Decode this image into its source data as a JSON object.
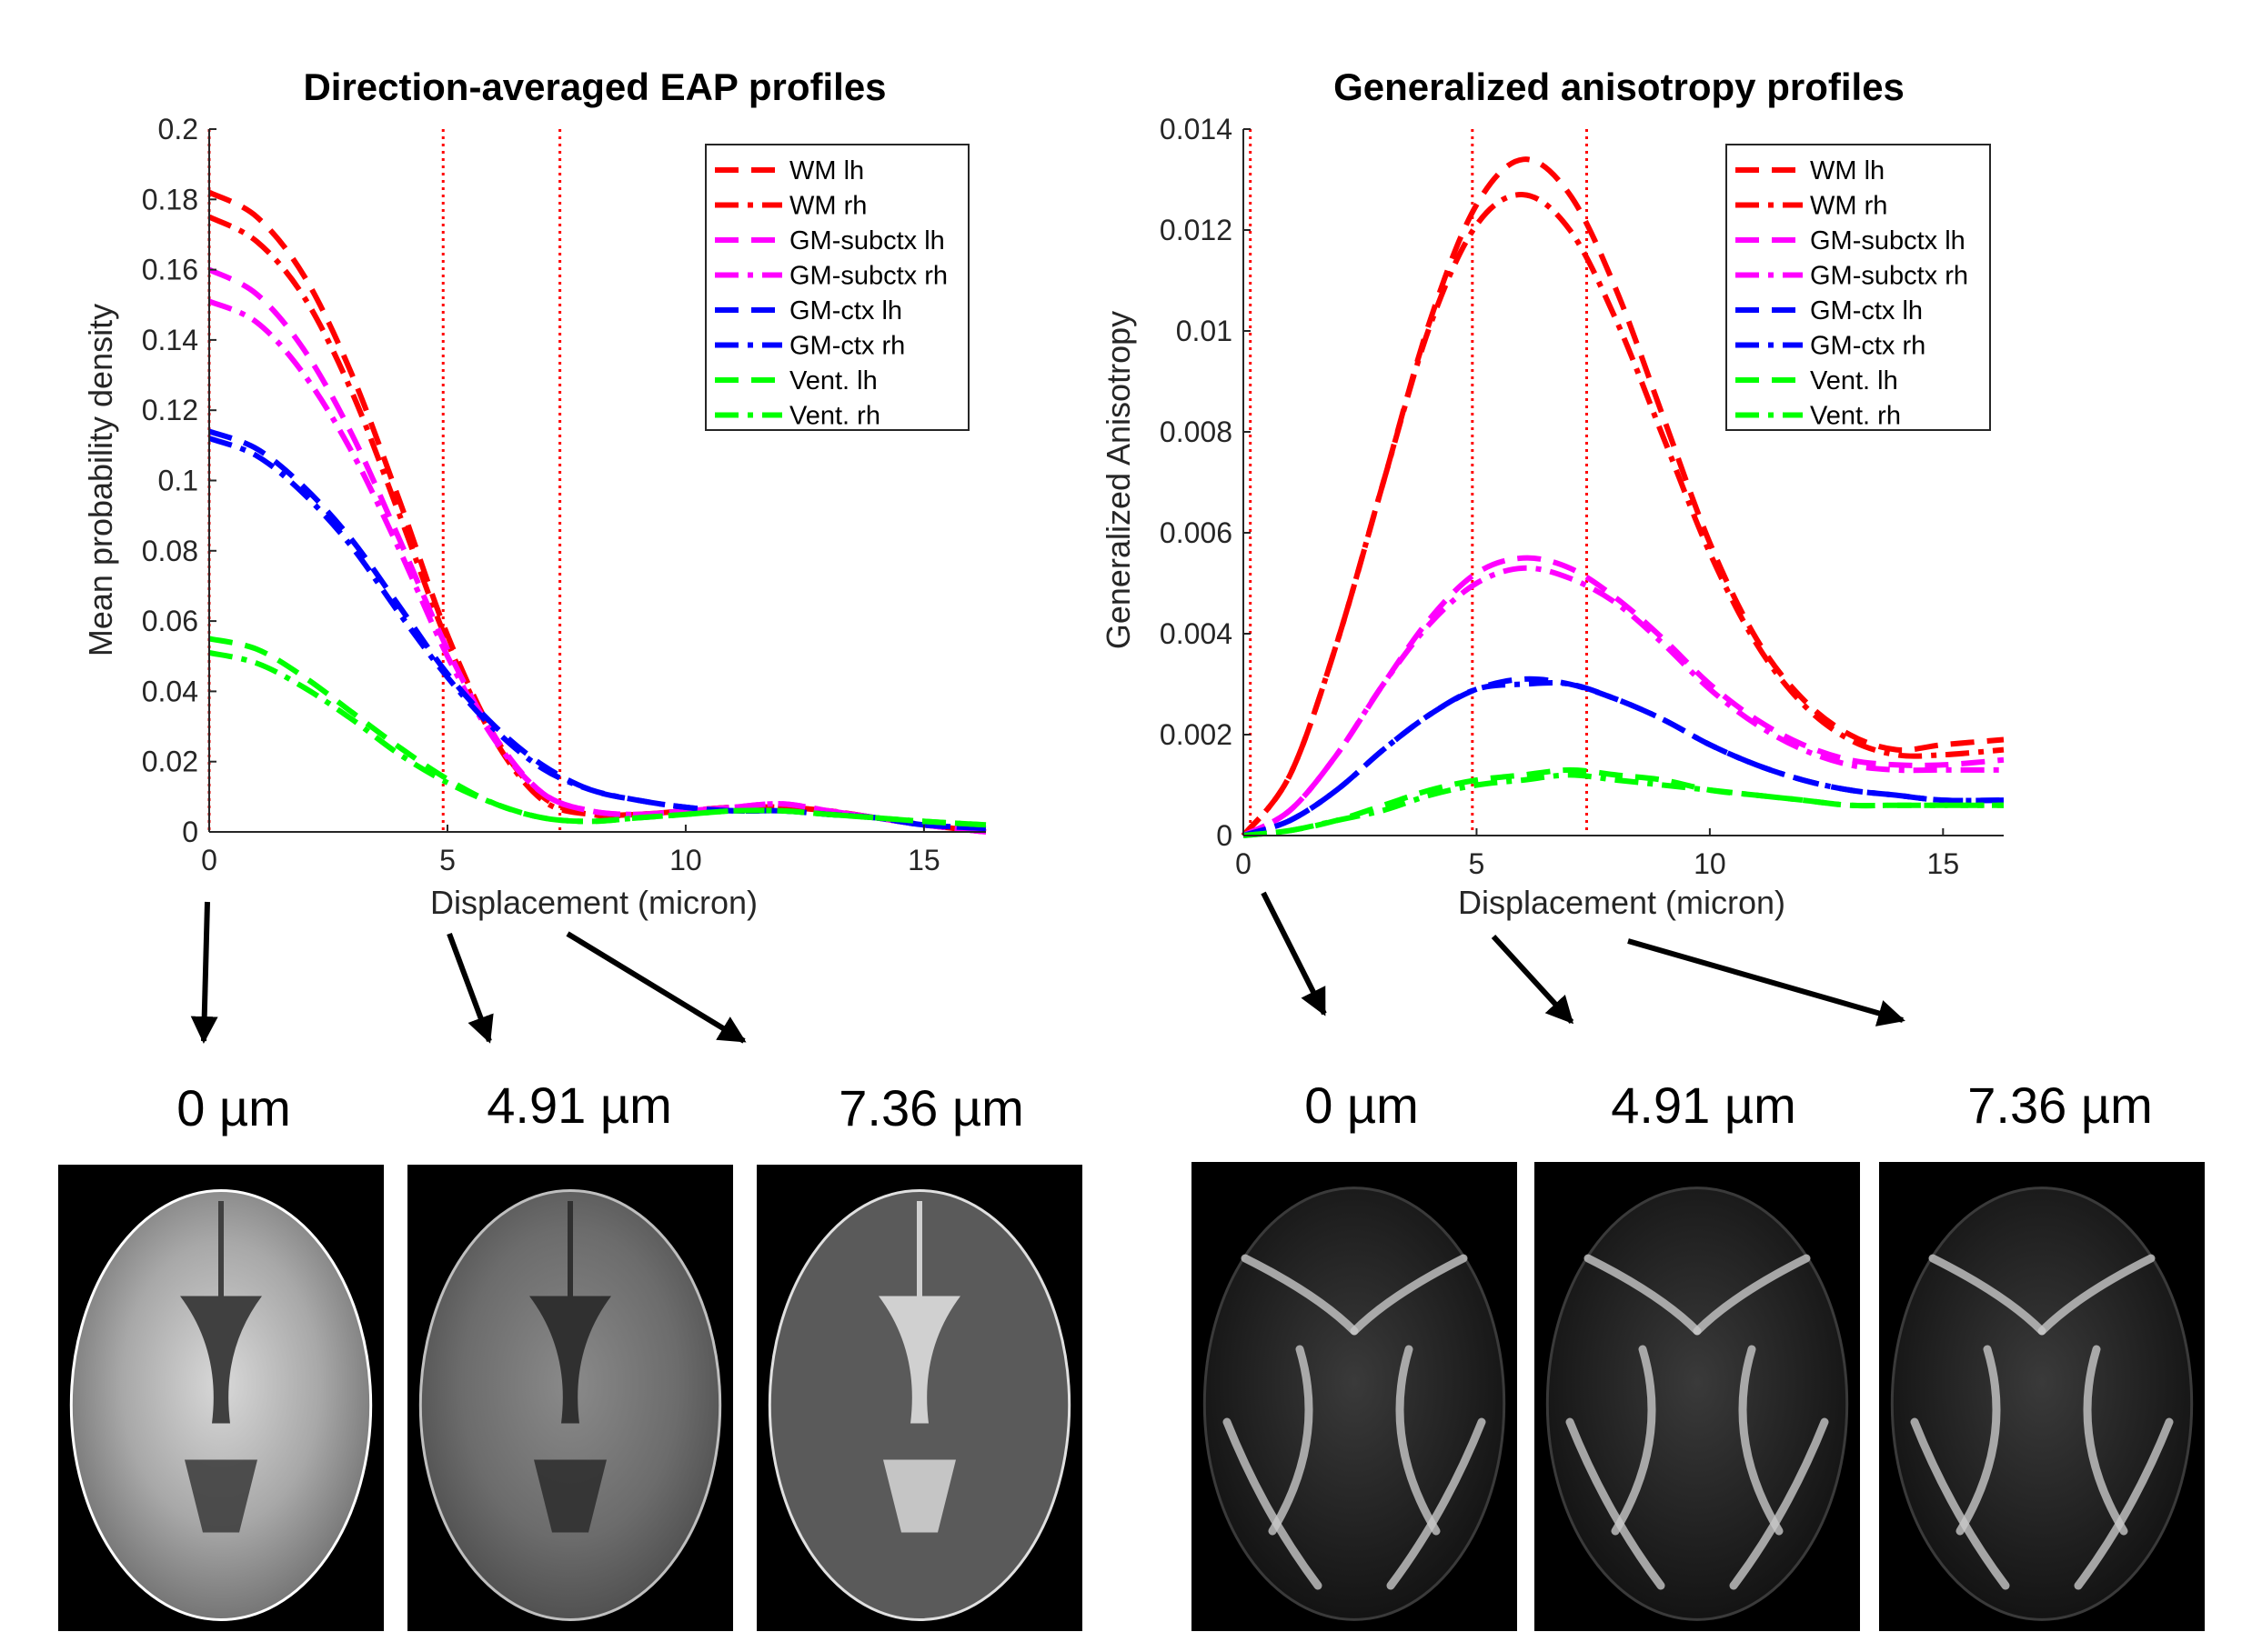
{
  "colors": {
    "wm": "#ff0000",
    "gm_subctx": "#ff00ff",
    "gm_ctx": "#0000ff",
    "vent": "#00ff00",
    "marker": "#ff0000"
  },
  "chart_data": [
    {
      "type": "line",
      "title": "Direction-averaged EAP profiles",
      "xlabel": "Displacement (micron)",
      "ylabel": "Mean probability density",
      "xlim": [
        0,
        16.3
      ],
      "ylim": [
        0,
        0.2
      ],
      "xticks": [
        "0",
        "5",
        "10",
        "15"
      ],
      "yticks": [
        "0",
        "0.02",
        "0.04",
        "0.06",
        "0.08",
        "0.1",
        "0.12",
        "0.14",
        "0.16",
        "0.18",
        "0.2"
      ],
      "legend_position": "top-right",
      "marker_lines": [
        0,
        4.91,
        7.36
      ],
      "x": [
        0,
        1,
        2,
        3,
        4,
        5,
        6,
        7,
        8,
        9,
        10,
        11,
        12,
        13,
        14,
        15,
        16.3
      ],
      "series": [
        {
          "name": "WM lh",
          "color": "wm",
          "dash": "dash",
          "values": [
            0.182,
            0.175,
            0.158,
            0.13,
            0.094,
            0.056,
            0.027,
            0.01,
            0.005,
            0.005,
            0.006,
            0.007,
            0.007,
            0.006,
            0.004,
            0.002,
            0.0
          ]
        },
        {
          "name": "WM rh",
          "color": "wm",
          "dash": "dashdot",
          "values": [
            0.175,
            0.168,
            0.152,
            0.125,
            0.09,
            0.054,
            0.026,
            0.009,
            0.005,
            0.005,
            0.006,
            0.007,
            0.007,
            0.006,
            0.004,
            0.002,
            0.0
          ]
        },
        {
          "name": "GM-subctx lh",
          "color": "gm_subctx",
          "dash": "dash",
          "values": [
            0.16,
            0.153,
            0.137,
            0.113,
            0.083,
            0.052,
            0.027,
            0.011,
            0.006,
            0.005,
            0.006,
            0.007,
            0.008,
            0.006,
            0.004,
            0.002,
            0.0
          ]
        },
        {
          "name": "GM-subctx rh",
          "color": "gm_subctx",
          "dash": "dashdot",
          "values": [
            0.151,
            0.145,
            0.13,
            0.108,
            0.08,
            0.05,
            0.026,
            0.011,
            0.006,
            0.005,
            0.006,
            0.007,
            0.008,
            0.006,
            0.004,
            0.002,
            0.0
          ]
        },
        {
          "name": "GM-ctx lh",
          "color": "gm_ctx",
          "dash": "dash",
          "values": [
            0.114,
            0.109,
            0.098,
            0.083,
            0.064,
            0.045,
            0.03,
            0.019,
            0.012,
            0.009,
            0.007,
            0.006,
            0.006,
            0.005,
            0.004,
            0.002,
            0.001
          ]
        },
        {
          "name": "GM-ctx rh",
          "color": "gm_ctx",
          "dash": "dashdot",
          "values": [
            0.112,
            0.107,
            0.096,
            0.081,
            0.062,
            0.044,
            0.029,
            0.018,
            0.012,
            0.009,
            0.007,
            0.006,
            0.006,
            0.005,
            0.004,
            0.002,
            0.001
          ]
        },
        {
          "name": "Vent. lh",
          "color": "vent",
          "dash": "dash",
          "values": [
            0.055,
            0.052,
            0.044,
            0.034,
            0.024,
            0.015,
            0.008,
            0.004,
            0.003,
            0.004,
            0.005,
            0.006,
            0.006,
            0.005,
            0.004,
            0.003,
            0.002
          ]
        },
        {
          "name": "Vent. rh",
          "color": "vent",
          "dash": "dashdot",
          "values": [
            0.051,
            0.048,
            0.041,
            0.032,
            0.022,
            0.014,
            0.008,
            0.004,
            0.003,
            0.004,
            0.005,
            0.006,
            0.006,
            0.005,
            0.004,
            0.003,
            0.002
          ]
        }
      ]
    },
    {
      "type": "line",
      "title": "Generalized anisotropy profiles",
      "xlabel": "Displacement (micron)",
      "ylabel": "Generalized Anisotropy",
      "xlim": [
        0,
        16.3
      ],
      "ylim": [
        0,
        0.014
      ],
      "xticks": [
        "0",
        "5",
        "10",
        "15"
      ],
      "yticks": [
        "0",
        "0.002",
        "0.004",
        "0.006",
        "0.008",
        "0.01",
        "0.012",
        "0.014"
      ],
      "legend_position": "top-right",
      "marker_lines": [
        0.15,
        4.91,
        7.36
      ],
      "x": [
        0,
        1,
        2,
        3,
        4,
        5,
        6,
        7,
        8,
        9,
        10,
        11,
        12,
        13,
        14,
        15,
        16.3
      ],
      "series": [
        {
          "name": "WM lh",
          "color": "wm",
          "dash": "dash",
          "values": [
            0.0,
            0.0012,
            0.0038,
            0.007,
            0.0102,
            0.0125,
            0.0134,
            0.0127,
            0.0108,
            0.0083,
            0.0058,
            0.0039,
            0.0027,
            0.002,
            0.0017,
            0.0018,
            0.0019
          ]
        },
        {
          "name": "WM rh",
          "color": "wm",
          "dash": "dashdot",
          "values": [
            0.0,
            0.0012,
            0.0038,
            0.007,
            0.0101,
            0.0121,
            0.0127,
            0.012,
            0.0102,
            0.0079,
            0.0056,
            0.0038,
            0.0026,
            0.0019,
            0.0016,
            0.0016,
            0.0017
          ]
        },
        {
          "name": "GM-subctx lh",
          "color": "gm_subctx",
          "dash": "dash",
          "values": [
            0.0,
            0.0005,
            0.0016,
            0.003,
            0.0043,
            0.0052,
            0.0055,
            0.0053,
            0.0047,
            0.0039,
            0.003,
            0.0023,
            0.0018,
            0.0015,
            0.0014,
            0.0014,
            0.0015
          ]
        },
        {
          "name": "GM-subctx rh",
          "color": "gm_subctx",
          "dash": "dashdot",
          "values": [
            0.0,
            0.0005,
            0.0016,
            0.003,
            0.0042,
            0.005,
            0.0053,
            0.0051,
            0.0046,
            0.0038,
            0.0029,
            0.0022,
            0.0017,
            0.0014,
            0.0013,
            0.0013,
            0.0013
          ]
        },
        {
          "name": "GM-ctx lh",
          "color": "gm_ctx",
          "dash": "dash",
          "values": [
            0.0,
            0.0003,
            0.0009,
            0.0017,
            0.0024,
            0.0029,
            0.0031,
            0.003,
            0.0027,
            0.0023,
            0.0018,
            0.0014,
            0.0011,
            0.0009,
            0.0008,
            0.0007,
            0.0007
          ]
        },
        {
          "name": "GM-ctx rh",
          "color": "gm_ctx",
          "dash": "dashdot",
          "values": [
            0.0,
            0.0003,
            0.0009,
            0.0017,
            0.0024,
            0.0029,
            0.003,
            0.003,
            0.0027,
            0.0023,
            0.0018,
            0.0014,
            0.0011,
            0.0009,
            0.0008,
            0.0007,
            0.0007
          ]
        },
        {
          "name": "Vent. lh",
          "color": "vent",
          "dash": "dash",
          "values": [
            0.0,
            0.0001,
            0.0003,
            0.0006,
            0.0009,
            0.0011,
            0.0012,
            0.0013,
            0.0012,
            0.0011,
            0.0009,
            0.0008,
            0.0007,
            0.0006,
            0.0006,
            0.0006,
            0.0006
          ]
        },
        {
          "name": "Vent. rh",
          "color": "vent",
          "dash": "dashdot",
          "values": [
            0.0,
            0.0001,
            0.0003,
            0.0005,
            0.0008,
            0.001,
            0.0011,
            0.0012,
            0.0011,
            0.001,
            0.0009,
            0.0008,
            0.0007,
            0.0006,
            0.0006,
            0.0006,
            0.0006
          ]
        }
      ]
    }
  ],
  "captions": {
    "left": [
      "0 µm",
      "4.91 µm",
      "7.36 µm"
    ],
    "right": [
      "0 µm",
      "4.91 µm",
      "7.36 µm"
    ]
  },
  "images": {
    "left": [
      "brain-eap-0um",
      "brain-eap-4.91um",
      "brain-eap-7.36um"
    ],
    "right": [
      "brain-ga-0um",
      "brain-ga-4.91um",
      "brain-ga-7.36um"
    ]
  }
}
